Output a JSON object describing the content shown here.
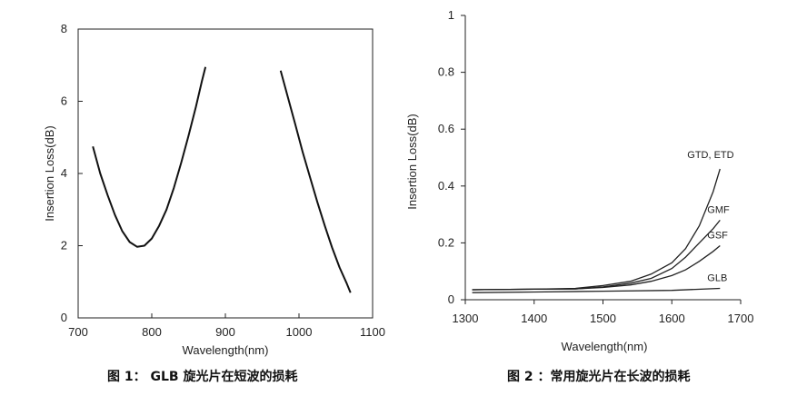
{
  "captions": {
    "figure1": "图 1：  GLB 旋光片在短波的损耗",
    "figure2": "图 2 ：常用旋光片在长波的损耗"
  },
  "chart_data": [
    {
      "type": "line",
      "title": "",
      "xlabel": "Wavelength(nm)",
      "ylabel": "Insertion Loss(dB)",
      "xlim": [
        700,
        1100
      ],
      "ylim": [
        0,
        8
      ],
      "xticks": [
        700,
        800,
        900,
        1000,
        1100
      ],
      "yticks": [
        0,
        2,
        4,
        6,
        8
      ],
      "frame": "box",
      "grid": false,
      "series": [
        {
          "segments": [
            [
              [
                720,
                4.75
              ],
              [
                730,
                4.0
              ],
              [
                740,
                3.4
              ],
              [
                750,
                2.85
              ],
              [
                760,
                2.4
              ],
              [
                770,
                2.1
              ],
              [
                780,
                1.97
              ],
              [
                790,
                2.0
              ],
              [
                800,
                2.2
              ],
              [
                810,
                2.55
              ],
              [
                820,
                3.0
              ],
              [
                830,
                3.6
              ],
              [
                840,
                4.3
              ],
              [
                850,
                5.05
              ],
              [
                860,
                5.85
              ],
              [
                868,
                6.55
              ],
              [
                873,
                6.95
              ]
            ],
            [
              [
                975,
                6.85
              ],
              [
                985,
                6.1
              ],
              [
                995,
                5.35
              ],
              [
                1005,
                4.6
              ],
              [
                1015,
                3.9
              ],
              [
                1025,
                3.2
              ],
              [
                1035,
                2.55
              ],
              [
                1045,
                1.95
              ],
              [
                1055,
                1.4
              ],
              [
                1065,
                0.95
              ],
              [
                1070,
                0.7
              ]
            ]
          ]
        }
      ]
    },
    {
      "type": "line",
      "title": "",
      "xlabel": "Wavelength(nm)",
      "ylabel": "Insertion Loss(dB)",
      "xlim": [
        1300,
        1700
      ],
      "ylim": [
        0,
        1
      ],
      "xticks": [
        1300,
        1400,
        1500,
        1600,
        1700
      ],
      "yticks": [
        0,
        0.2,
        0.4,
        0.6,
        0.8,
        1
      ],
      "frame": "left-bottom",
      "grid": false,
      "series": [
        {
          "name": "GTD, ETD",
          "x": [
            1310,
            1400,
            1460,
            1500,
            1540,
            1570,
            1600,
            1620,
            1640,
            1660,
            1670
          ],
          "y": [
            0.035,
            0.037,
            0.04,
            0.05,
            0.065,
            0.09,
            0.13,
            0.18,
            0.26,
            0.38,
            0.46
          ]
        },
        {
          "name": "GMF",
          "x": [
            1310,
            1400,
            1460,
            1500,
            1540,
            1570,
            1600,
            1620,
            1640,
            1660,
            1670
          ],
          "y": [
            0.035,
            0.037,
            0.038,
            0.045,
            0.058,
            0.075,
            0.11,
            0.15,
            0.2,
            0.25,
            0.28
          ]
        },
        {
          "name": "GSF",
          "x": [
            1310,
            1400,
            1460,
            1500,
            1540,
            1570,
            1600,
            1620,
            1640,
            1660,
            1670
          ],
          "y": [
            0.035,
            0.037,
            0.038,
            0.043,
            0.052,
            0.065,
            0.085,
            0.105,
            0.135,
            0.17,
            0.19
          ]
        },
        {
          "name": "GLB",
          "x": [
            1310,
            1400,
            1500,
            1600,
            1650,
            1670
          ],
          "y": [
            0.025,
            0.027,
            0.03,
            0.033,
            0.038,
            0.04
          ]
        }
      ],
      "labels_at": "line-ends"
    }
  ]
}
